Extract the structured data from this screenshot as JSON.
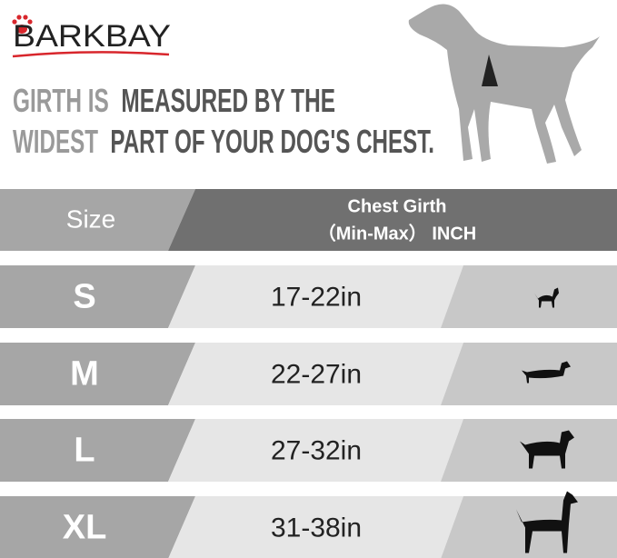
{
  "brand": "BARKBAY",
  "headline": {
    "line1": [
      "GIRTH IS",
      "MEASURED BY THE"
    ],
    "line2": [
      "WIDEST",
      "PART OF YOUR DOG'S CHEST."
    ]
  },
  "table": {
    "header": {
      "size": "Size",
      "girth": "Chest Girth",
      "unit": "（Min-Max）  INCH"
    },
    "rows": [
      [
        "S",
        "17-22in"
      ],
      [
        "M",
        "22-27in"
      ],
      [
        "L",
        "27-32in"
      ],
      [
        "XL",
        "31-38in"
      ]
    ]
  }
}
